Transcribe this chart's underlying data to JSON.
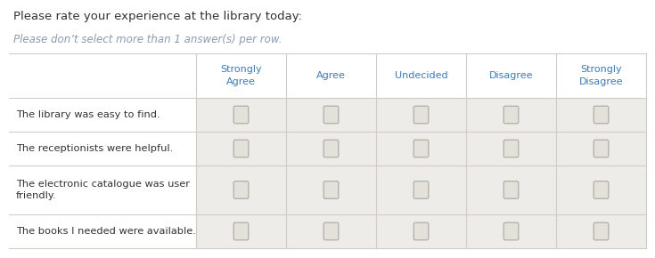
{
  "title": "Please rate your experience at the library today:",
  "subtitle": "Please don’t select more than 1 answer(s) per row.",
  "title_color": "#333333",
  "subtitle_color": "#8a9bb0",
  "col_headers": [
    "Strongly\nAgree",
    "Agree",
    "Undecided",
    "Disagree",
    "Strongly\nDisagree"
  ],
  "col_header_color": "#3d7ab5",
  "row_labels": [
    "The library was easy to find.",
    "The receptionists were helpful.",
    "The electronic catalogue was user\nfriendly.",
    "The books I needed were available."
  ],
  "row_label_color": "#333333",
  "bg_white": "#ffffff",
  "bg_light": "#eeece8",
  "border_color": "#d0cdc8",
  "checkbox_border": "#b0ada8",
  "checkbox_fill": "#e4e1db",
  "n_cols": 5,
  "n_rows": 4,
  "fig_width": 7.35,
  "fig_height": 2.9
}
